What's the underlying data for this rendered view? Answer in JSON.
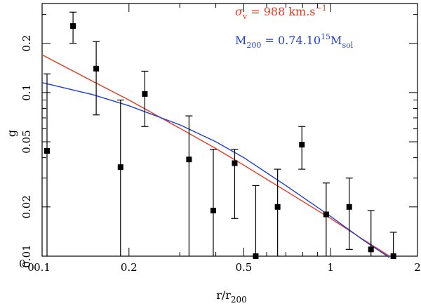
{
  "chart_data": {
    "type": "scatter",
    "title": "",
    "xlabel_main": "r/r",
    "xlabel_sub": "200",
    "ylabel": "g",
    "xscale": "log",
    "yscale": "log",
    "xlim": [
      0.1,
      2
    ],
    "ylim": [
      0.01,
      0.35
    ],
    "xticks": [
      {
        "value": 0.1,
        "label": "0.1"
      },
      {
        "value": 0.2,
        "label": "0.2"
      },
      {
        "value": 0.5,
        "label": "0.5"
      },
      {
        "value": 1,
        "label": "1"
      },
      {
        "value": 2,
        "label": "2"
      }
    ],
    "yticks": [
      {
        "value": 0.01,
        "label": "0.01"
      },
      {
        "value": 0.02,
        "label": "0.02"
      },
      {
        "value": 0.05,
        "label": "0.05"
      },
      {
        "value": 0.1,
        "label": "0.1"
      },
      {
        "value": 0.2,
        "label": "0.2"
      }
    ],
    "corner_labels": {
      "y_origin": "0",
      "x_origin": "0"
    },
    "points": [
      {
        "x": 0.104,
        "y": 0.044,
        "ylow": 0.01,
        "yhigh": 0.13
      },
      {
        "x": 0.128,
        "y": 0.255,
        "ylow": 0.2,
        "yhigh": 0.31
      },
      {
        "x": 0.154,
        "y": 0.14,
        "ylow": 0.073,
        "yhigh": 0.205
      },
      {
        "x": 0.187,
        "y": 0.035,
        "ylow": 0.01,
        "yhigh": 0.09
      },
      {
        "x": 0.227,
        "y": 0.098,
        "ylow": 0.062,
        "yhigh": 0.135
      },
      {
        "x": 0.323,
        "y": 0.039,
        "ylow": 0.01,
        "yhigh": 0.072
      },
      {
        "x": 0.392,
        "y": 0.019,
        "ylow": 0.01,
        "yhigh": 0.045
      },
      {
        "x": 0.465,
        "y": 0.037,
        "ylow": 0.017,
        "yhigh": 0.045
      },
      {
        "x": 0.55,
        "y": 0.01,
        "ylow": 0.01,
        "yhigh": 0.027
      },
      {
        "x": 0.655,
        "y": 0.02,
        "ylow": 0.01,
        "yhigh": 0.034
      },
      {
        "x": 0.795,
        "y": 0.048,
        "ylow": 0.034,
        "yhigh": 0.062
      },
      {
        "x": 0.965,
        "y": 0.018,
        "ylow": 0.01,
        "yhigh": 0.028
      },
      {
        "x": 1.16,
        "y": 0.02,
        "ylow": 0.011,
        "yhigh": 0.03
      },
      {
        "x": 1.38,
        "y": 0.011,
        "ylow": 0.01,
        "yhigh": 0.019
      },
      {
        "x": 1.65,
        "y": 0.01,
        "ylow": 0.01,
        "yhigh": 0.014
      }
    ],
    "series": [
      {
        "name": "sigma_v fit",
        "color": "#e8371e",
        "x": [
          0.1,
          0.15,
          0.2,
          0.3,
          0.4,
          0.5,
          0.7,
          1.0,
          1.3,
          1.6
        ],
        "y": [
          0.17,
          0.117,
          0.09,
          0.0605,
          0.0455,
          0.036,
          0.025,
          0.017,
          0.0126,
          0.01
        ]
      },
      {
        "name": "M200 fit",
        "color": "#1f3fcf",
        "x": [
          0.1,
          0.15,
          0.2,
          0.3,
          0.4,
          0.5,
          0.7,
          1.0,
          1.3,
          1.6
        ],
        "y": [
          0.115,
          0.097,
          0.083,
          0.0635,
          0.05,
          0.04,
          0.027,
          0.0175,
          0.0125,
          0.0098
        ]
      }
    ],
    "legend": [
      {
        "color": "#e8371e",
        "symbol": "σ",
        "symbol_sub": "v",
        "text": " = 988 km.s",
        "sup": "−1"
      },
      {
        "color": "#1f3fcf",
        "symbol": "M",
        "symbol_sub": "200",
        "text": " = 0.74.10",
        "sup": "15",
        "tail": "M",
        "tail_sub": "sol"
      }
    ]
  }
}
